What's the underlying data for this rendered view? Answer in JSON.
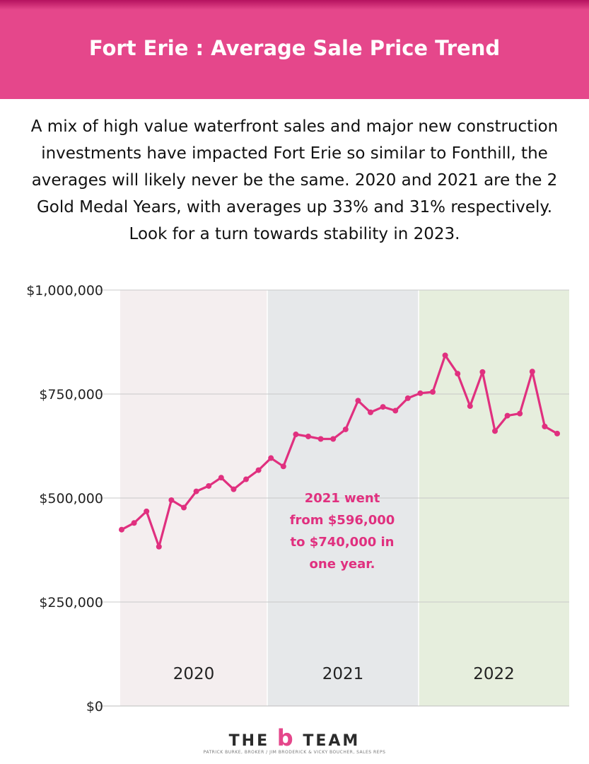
{
  "header": {
    "title": "Fort Erie : Average Sale Price Trend"
  },
  "intro": {
    "text": "A mix of high value waterfront sales and major new construction investments have impacted Fort Erie so similar to Fonthill, the averages will likely never be the same. 2020 and 2021 are the 2 Gold Medal Years, with averages up 33% and 31% respectively. Look for a turn towards stability in 2023."
  },
  "colors": {
    "accent": "#e0307f",
    "banner": "#e5478b",
    "band_2020": "#f4eeef",
    "band_2021": "#e6e8ea",
    "band_2022": "#e6eedd"
  },
  "chart_data": {
    "type": "line",
    "ylim": [
      0,
      1000000
    ],
    "yticks": [
      {
        "value": 0,
        "label": "$0"
      },
      {
        "value": 250000,
        "label": "$250,000"
      },
      {
        "value": 500000,
        "label": "$500,000"
      },
      {
        "value": 750000,
        "label": "$750,000"
      },
      {
        "value": 1000000,
        "label": "$1,000,000"
      }
    ],
    "grid": true,
    "bands": [
      {
        "label": "2020",
        "color": "#f4eeef"
      },
      {
        "label": "2021",
        "color": "#e6e8ea"
      },
      {
        "label": "2022",
        "color": "#e6eedd"
      }
    ],
    "x": [
      "2020-01",
      "2020-02",
      "2020-03",
      "2020-04",
      "2020-05",
      "2020-06",
      "2020-07",
      "2020-08",
      "2020-09",
      "2020-10",
      "2020-11",
      "2020-12",
      "2021-01",
      "2021-02",
      "2021-03",
      "2021-04",
      "2021-05",
      "2021-06",
      "2021-07",
      "2021-08",
      "2021-09",
      "2021-10",
      "2021-11",
      "2021-12",
      "2022-01",
      "2022-02",
      "2022-03",
      "2022-04",
      "2022-05",
      "2022-06",
      "2022-07",
      "2022-08",
      "2022-09",
      "2022-10",
      "2022-11",
      "2022-12"
    ],
    "series": [
      {
        "color": "#e0307f",
        "values": [
          424000,
          440000,
          468000,
          383000,
          495000,
          477000,
          516000,
          529000,
          549000,
          521000,
          545000,
          567000,
          596000,
          576000,
          653000,
          648000,
          642000,
          642000,
          665000,
          734000,
          706000,
          719000,
          710000,
          740000,
          752000,
          755000,
          843000,
          799000,
          721000,
          803000,
          661000,
          698000,
          703000,
          804000,
          672000,
          655000
        ]
      }
    ],
    "annotation": [
      "2021 went",
      "from $596,000",
      "to $740,000 in",
      "one year."
    ]
  },
  "footer": {
    "logo_brand": "THE",
    "logo_b": "b",
    "logo_team": "TEAM",
    "logo_sub": "PATRICK BURKE, BROKER / JIM BRODERICK & VICKY BOUCHER, SALES REPS"
  }
}
